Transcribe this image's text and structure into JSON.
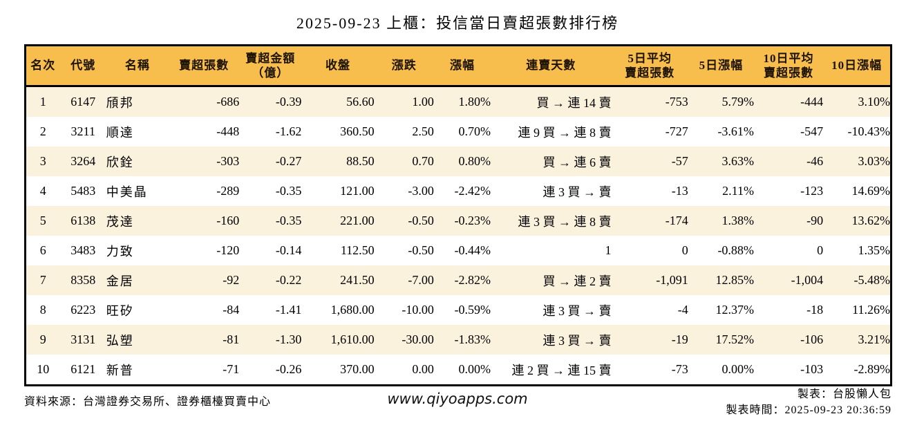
{
  "title": "2025-09-23 上櫃：投信當日賣超張數排行榜",
  "chart_data": {
    "type": "table",
    "title": "2025-09-23 上櫃：投信當日賣超張數排行榜",
    "columns": [
      "名次",
      "代號",
      "名稱",
      "賣超張數",
      "賣超金額\n（億）",
      "收盤",
      "漲跌",
      "漲幅",
      "連賣天數",
      "5日平均\n賣超張數",
      "5日漲幅",
      "10日平均\n賣超張數",
      "10日漲幅"
    ],
    "column_names": [
      "rank",
      "code",
      "name",
      "net-sell-volume",
      "net-sell-amount-100m",
      "close",
      "change",
      "change-pct",
      "consecutive-days",
      "avg5-net-sell-volume",
      "change-5d-pct",
      "avg10-net-sell-volume",
      "change-10d-pct"
    ],
    "column_align": [
      "center",
      "center",
      "left",
      "right",
      "right",
      "right",
      "right",
      "right",
      "right",
      "right",
      "right",
      "right",
      "right"
    ],
    "rows": [
      {
        "values": [
          "1",
          "6147",
          "頎邦",
          "-686",
          "-0.39",
          "56.60",
          "1.00",
          "1.80%",
          "買 → 連 14 賣",
          "-753",
          "5.79%",
          "-444",
          "3.10%"
        ],
        "colors": [
          "",
          "",
          "",
          "",
          "",
          "",
          "r",
          "r",
          "",
          "",
          "r",
          "",
          "r"
        ]
      },
      {
        "values": [
          "2",
          "3211",
          "順達",
          "-448",
          "-1.62",
          "360.50",
          "2.50",
          "0.70%",
          "連 9 買 → 連 8 賣",
          "-727",
          "-3.61%",
          "-547",
          "-10.43%"
        ],
        "colors": [
          "",
          "",
          "",
          "",
          "",
          "",
          "r",
          "r",
          "",
          "",
          "g",
          "",
          "g"
        ]
      },
      {
        "values": [
          "3",
          "3264",
          "欣銓",
          "-303",
          "-0.27",
          "88.50",
          "0.70",
          "0.80%",
          "買 → 連 6 賣",
          "-57",
          "3.63%",
          "-46",
          "3.03%"
        ],
        "colors": [
          "",
          "",
          "",
          "",
          "",
          "",
          "r",
          "r",
          "",
          "",
          "r",
          "",
          "r"
        ]
      },
      {
        "values": [
          "4",
          "5483",
          "中美晶",
          "-289",
          "-0.35",
          "121.00",
          "-3.00",
          "-2.42%",
          "連 3 買 → 賣",
          "-13",
          "2.11%",
          "-123",
          "14.69%"
        ],
        "colors": [
          "",
          "",
          "",
          "",
          "",
          "",
          "g",
          "g",
          "",
          "",
          "r",
          "",
          "r"
        ]
      },
      {
        "values": [
          "5",
          "6138",
          "茂達",
          "-160",
          "-0.35",
          "221.00",
          "-0.50",
          "-0.23%",
          "連 3 買 → 連 8 賣",
          "-174",
          "1.38%",
          "-90",
          "13.62%"
        ],
        "colors": [
          "",
          "",
          "",
          "",
          "",
          "",
          "g",
          "g",
          "",
          "",
          "r",
          "",
          "r"
        ]
      },
      {
        "values": [
          "6",
          "3483",
          "力致",
          "-120",
          "-0.14",
          "112.50",
          "-0.50",
          "-0.44%",
          "1",
          "0",
          "-0.88%",
          "0",
          "1.35%"
        ],
        "colors": [
          "",
          "",
          "",
          "",
          "",
          "",
          "g",
          "g",
          "",
          "",
          "g",
          "",
          "r"
        ]
      },
      {
        "values": [
          "7",
          "8358",
          "金居",
          "-92",
          "-0.22",
          "241.50",
          "-7.00",
          "-2.82%",
          "買 → 連 2 賣",
          "-1,091",
          "12.85%",
          "-1,004",
          "-5.48%"
        ],
        "colors": [
          "",
          "",
          "",
          "",
          "",
          "",
          "g",
          "g",
          "",
          "",
          "r",
          "",
          "g"
        ]
      },
      {
        "values": [
          "8",
          "6223",
          "旺矽",
          "-84",
          "-1.41",
          "1,680.00",
          "-10.00",
          "-0.59%",
          "連 3 買 → 賣",
          "-4",
          "12.37%",
          "-18",
          "11.26%"
        ],
        "colors": [
          "",
          "",
          "",
          "",
          "",
          "",
          "g",
          "g",
          "",
          "",
          "r",
          "",
          "r"
        ]
      },
      {
        "values": [
          "9",
          "3131",
          "弘塑",
          "-81",
          "-1.30",
          "1,610.00",
          "-30.00",
          "-1.83%",
          "連 3 買 → 賣",
          "-19",
          "17.52%",
          "-106",
          "3.21%"
        ],
        "colors": [
          "",
          "",
          "",
          "",
          "",
          "",
          "g",
          "g",
          "",
          "",
          "r",
          "",
          "r"
        ]
      },
      {
        "values": [
          "10",
          "6121",
          "新普",
          "-71",
          "-0.26",
          "370.00",
          "0.00",
          "0.00%",
          "連 2 買 → 連 15 賣",
          "-73",
          "0.00%",
          "-103",
          "-2.89%"
        ],
        "colors": [
          "",
          "",
          "",
          "",
          "",
          "",
          "",
          "",
          "",
          "",
          "",
          "",
          "g"
        ]
      }
    ]
  },
  "footer": {
    "source": "資料來源：台灣證券交易所、證券櫃檯買賣中心",
    "website": "www.qiyoapps.com",
    "maker": "製表：台股懶人包",
    "timestamp": "製表時間：2025-09-23 20:36:59"
  },
  "colors": {
    "header_bg": "#f7bd4d",
    "row_alt_bg": "#fbf2de",
    "up_red": "#cc2222",
    "down_green": "#1f7a1f",
    "border": "#000000"
  }
}
